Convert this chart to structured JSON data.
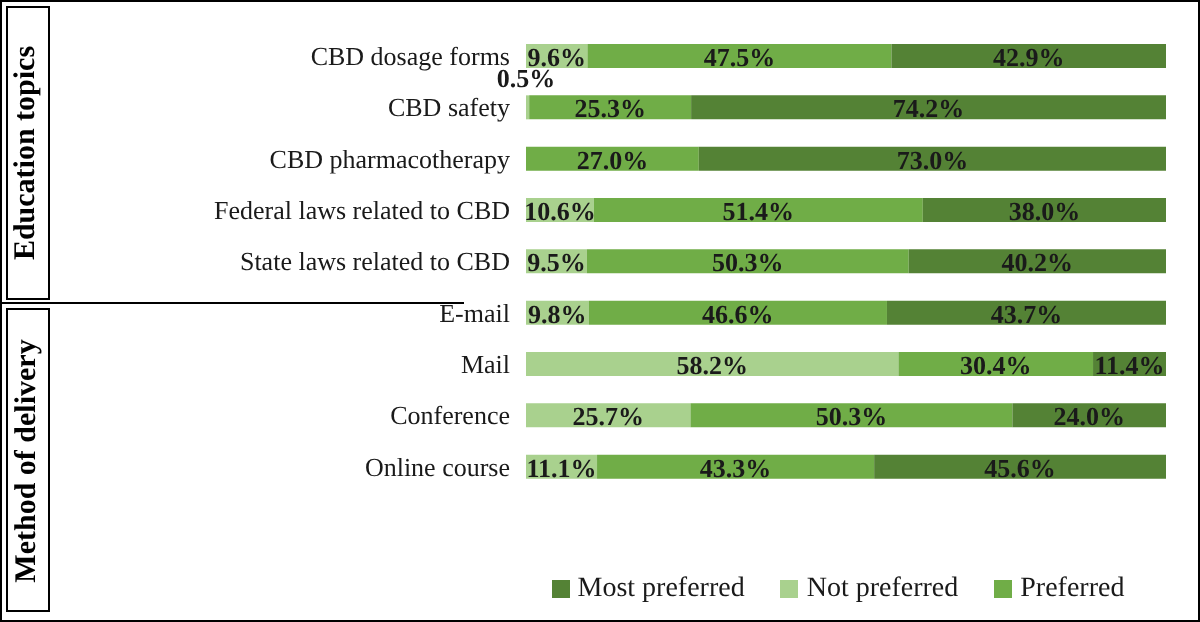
{
  "chart_data": {
    "type": "bar",
    "orientation": "horizontal",
    "stacked": true,
    "categories": [
      "CBD dosage forms",
      "CBD safety",
      "CBD pharmacotherapy",
      "Federal laws related to CBD",
      "State laws related to CBD",
      "E-mail",
      "Mail",
      "Conference",
      "Online course"
    ],
    "series": [
      {
        "name": "Not preferred",
        "color": "#a9d18e",
        "values": [
          9.6,
          0.5,
          0,
          10.6,
          9.5,
          9.8,
          58.2,
          25.7,
          11.1
        ],
        "value_labels": [
          "9.6%",
          "0.5%",
          null,
          "10.6%",
          "9.5%",
          "9.8%",
          "58.2%",
          "25.7%",
          "11.1%"
        ]
      },
      {
        "name": "Preferred",
        "color": "#70ad47",
        "values": [
          47.5,
          25.3,
          27.0,
          51.4,
          50.3,
          46.6,
          30.4,
          50.3,
          43.3
        ],
        "value_labels": [
          "47.5%",
          "25.3%",
          "27.0%",
          "51.4%",
          "50.3%",
          "46.6%",
          "30.4%",
          "50.3%",
          "43.3%"
        ]
      },
      {
        "name": "Most preferred",
        "color": "#548235",
        "values": [
          42.9,
          74.2,
          73.0,
          38.0,
          40.2,
          43.7,
          11.4,
          24.0,
          45.6
        ],
        "value_labels": [
          "42.9%",
          "74.2%",
          "73.0%",
          "38.0%",
          "40.2%",
          "43.7%",
          "11.4%",
          "24.0%",
          "45.6%"
        ]
      }
    ],
    "xlim": [
      0,
      100
    ],
    "tick_labels": "y",
    "legend": "bottom",
    "grid": false,
    "annotations": [
      "Education topics",
      "Method of delivery"
    ]
  }
}
